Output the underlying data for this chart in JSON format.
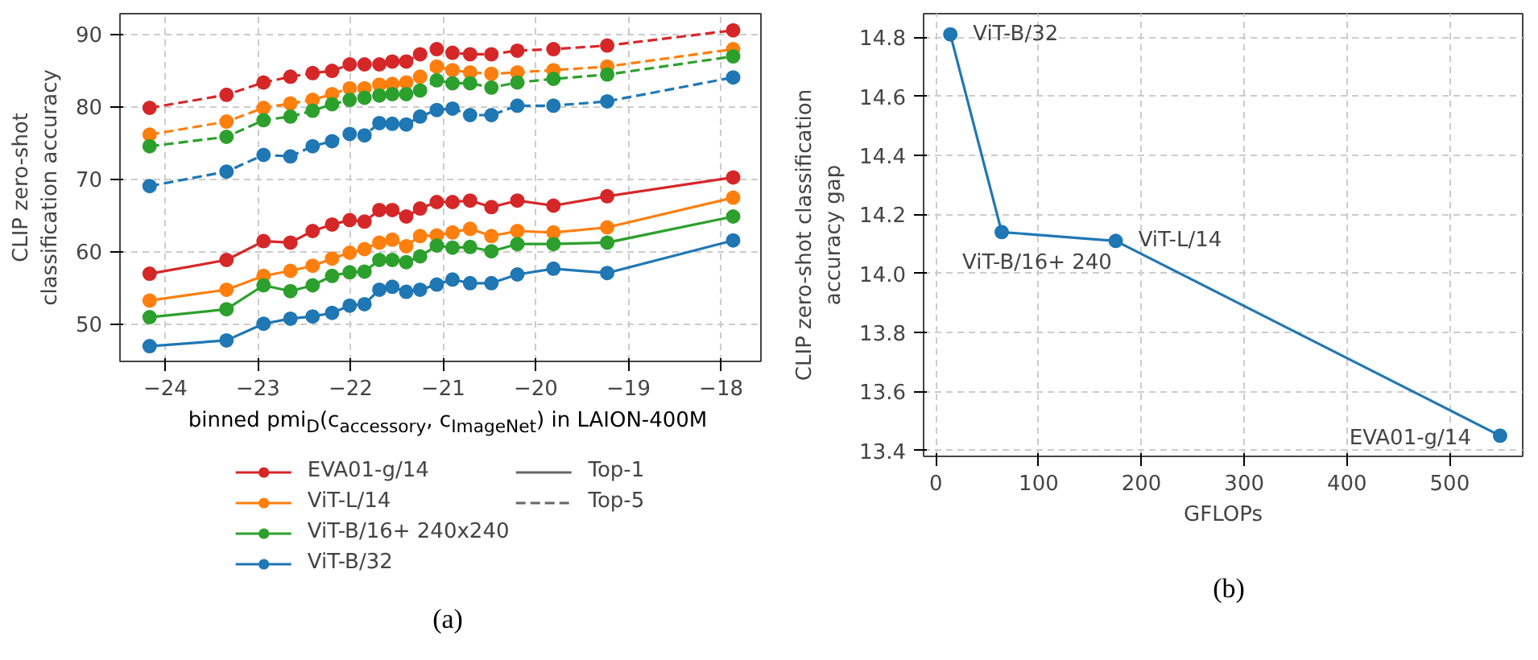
{
  "chart_data": [
    {
      "type": "line",
      "title": "(a)",
      "xlabel": "binned pmi$_{D}$(c$_{accessory}$, c$_{ImageNet}$) in LAION-400M",
      "ylabel": "CLIP zero-shot\nclassification accuracy",
      "x": [
        -24.17,
        -23.34,
        -22.94,
        -22.65,
        -22.41,
        -22.2,
        -22.01,
        -21.85,
        -21.69,
        -21.55,
        -21.4,
        -21.25,
        -21.07,
        -20.9,
        -20.71,
        -20.48,
        -20.2,
        -19.81,
        -19.23,
        -17.87
      ],
      "series": [
        {
          "name": "EVA01-g/14",
          "color": "#d62728",
          "line_style": "solid",
          "values": [
            56.9,
            58.8,
            61.4,
            61.2,
            62.8,
            63.7,
            64.3,
            64.1,
            65.7,
            65.7,
            64.8,
            65.9,
            66.8,
            66.8,
            67.0,
            66.1,
            67.0,
            66.3,
            67.6,
            70.2
          ]
        },
        {
          "name": "ViT-L/14",
          "color": "#ff7f0e",
          "line_style": "solid",
          "values": [
            53.2,
            54.7,
            56.6,
            57.3,
            58.0,
            59.0,
            59.8,
            60.3,
            61.2,
            61.6,
            60.7,
            62.1,
            62.2,
            62.6,
            63.1,
            62.1,
            62.8,
            62.6,
            63.3,
            67.4
          ]
        },
        {
          "name": "ViT-B/16+ 240x240",
          "color": "#2ca02c",
          "line_style": "solid",
          "values": [
            50.9,
            52.0,
            55.3,
            54.5,
            55.3,
            56.6,
            57.1,
            57.2,
            58.8,
            58.8,
            58.5,
            59.3,
            60.8,
            60.5,
            60.6,
            60.0,
            61.0,
            61.0,
            61.2,
            64.8
          ]
        },
        {
          "name": "ViT-B/32",
          "color": "#1f77b4",
          "line_style": "solid",
          "values": [
            46.9,
            47.7,
            50.0,
            50.7,
            51.0,
            51.5,
            52.5,
            52.7,
            54.7,
            55.1,
            54.4,
            54.7,
            55.4,
            56.1,
            55.6,
            55.6,
            56.8,
            57.6,
            57.0,
            61.5
          ]
        },
        {
          "color": "#d62728",
          "line_style": "dashed",
          "values": [
            79.8,
            81.6,
            83.3,
            84.1,
            84.6,
            84.9,
            85.8,
            85.8,
            85.8,
            86.2,
            86.2,
            87.2,
            87.9,
            87.4,
            87.2,
            87.2,
            87.7,
            87.9,
            88.4,
            90.5
          ]
        },
        {
          "color": "#ff7f0e",
          "line_style": "dashed",
          "values": [
            76.1,
            77.9,
            79.8,
            80.4,
            80.9,
            81.7,
            82.5,
            82.5,
            83.0,
            83.1,
            83.3,
            84.1,
            85.5,
            85.0,
            84.7,
            84.5,
            84.7,
            85.0,
            85.5,
            87.9
          ]
        },
        {
          "color": "#2ca02c",
          "line_style": "dashed",
          "values": [
            74.5,
            75.8,
            78.1,
            78.6,
            79.4,
            80.3,
            80.9,
            81.2,
            81.5,
            81.7,
            81.7,
            82.2,
            83.6,
            83.2,
            83.2,
            82.6,
            83.3,
            83.8,
            84.4,
            86.9
          ]
        },
        {
          "color": "#1f77b4",
          "line_style": "dashed",
          "values": [
            69.0,
            71.0,
            73.3,
            73.1,
            74.5,
            75.2,
            76.2,
            76.0,
            77.7,
            77.6,
            77.5,
            78.6,
            79.5,
            79.7,
            78.8,
            78.8,
            80.1,
            80.1,
            80.7,
            84.0
          ]
        }
      ],
      "annotations": [
        "Top-1",
        "Top-5"
      ],
      "xlim": [
        -24.49,
        -17.57
      ],
      "ylim": [
        44.8,
        92.8
      ],
      "xticks": [
        {
          "value": -24,
          "label": "−24"
        },
        {
          "value": -23,
          "label": "−23"
        },
        {
          "value": -22,
          "label": "−22"
        },
        {
          "value": -21,
          "label": "−21"
        },
        {
          "value": -20,
          "label": "−20"
        },
        {
          "value": -19,
          "label": "−19"
        },
        {
          "value": -18,
          "label": "−18"
        }
      ],
      "yticks": [
        50,
        60,
        70,
        80,
        90
      ],
      "grid": true,
      "legend": "bottom",
      "marker": "circle"
    },
    {
      "type": "line",
      "title": "(b)",
      "xlabel": "GFLOPs",
      "ylabel": "CLIP zero-shot classification\naccuracy gap",
      "x": [
        14,
        64,
        175,
        549
      ],
      "series": [
        {
          "color": "#1f77b4",
          "values": [
            14.81,
            14.14,
            14.11,
            13.45
          ]
        }
      ],
      "annotations": [
        {
          "text": "ViT-B/32",
          "x": 14,
          "y": 14.81
        },
        {
          "text": "ViT-B/16+ 240",
          "x": 64,
          "y": 14.14
        },
        {
          "text": "ViT-L/14",
          "x": 175,
          "y": 14.11
        },
        {
          "text": "EVA01-g/14",
          "x": 549,
          "y": 13.45
        }
      ],
      "xlim": [
        -12,
        571
      ],
      "ylim": [
        13.38,
        14.88
      ],
      "xticks": [
        0,
        100,
        200,
        300,
        400,
        500
      ],
      "yticks": [
        {
          "value": 13.4,
          "label": "13.4"
        },
        {
          "value": 13.6,
          "label": "13.6"
        },
        {
          "value": 13.8,
          "label": "13.8"
        },
        {
          "value": 14.0,
          "label": "14.0"
        },
        {
          "value": 14.2,
          "label": "14.2"
        },
        {
          "value": 14.4,
          "label": "14.4"
        },
        {
          "value": 14.6,
          "label": "14.6"
        },
        {
          "value": 14.8,
          "label": "14.8"
        }
      ],
      "grid": true,
      "marker": "circle"
    }
  ]
}
